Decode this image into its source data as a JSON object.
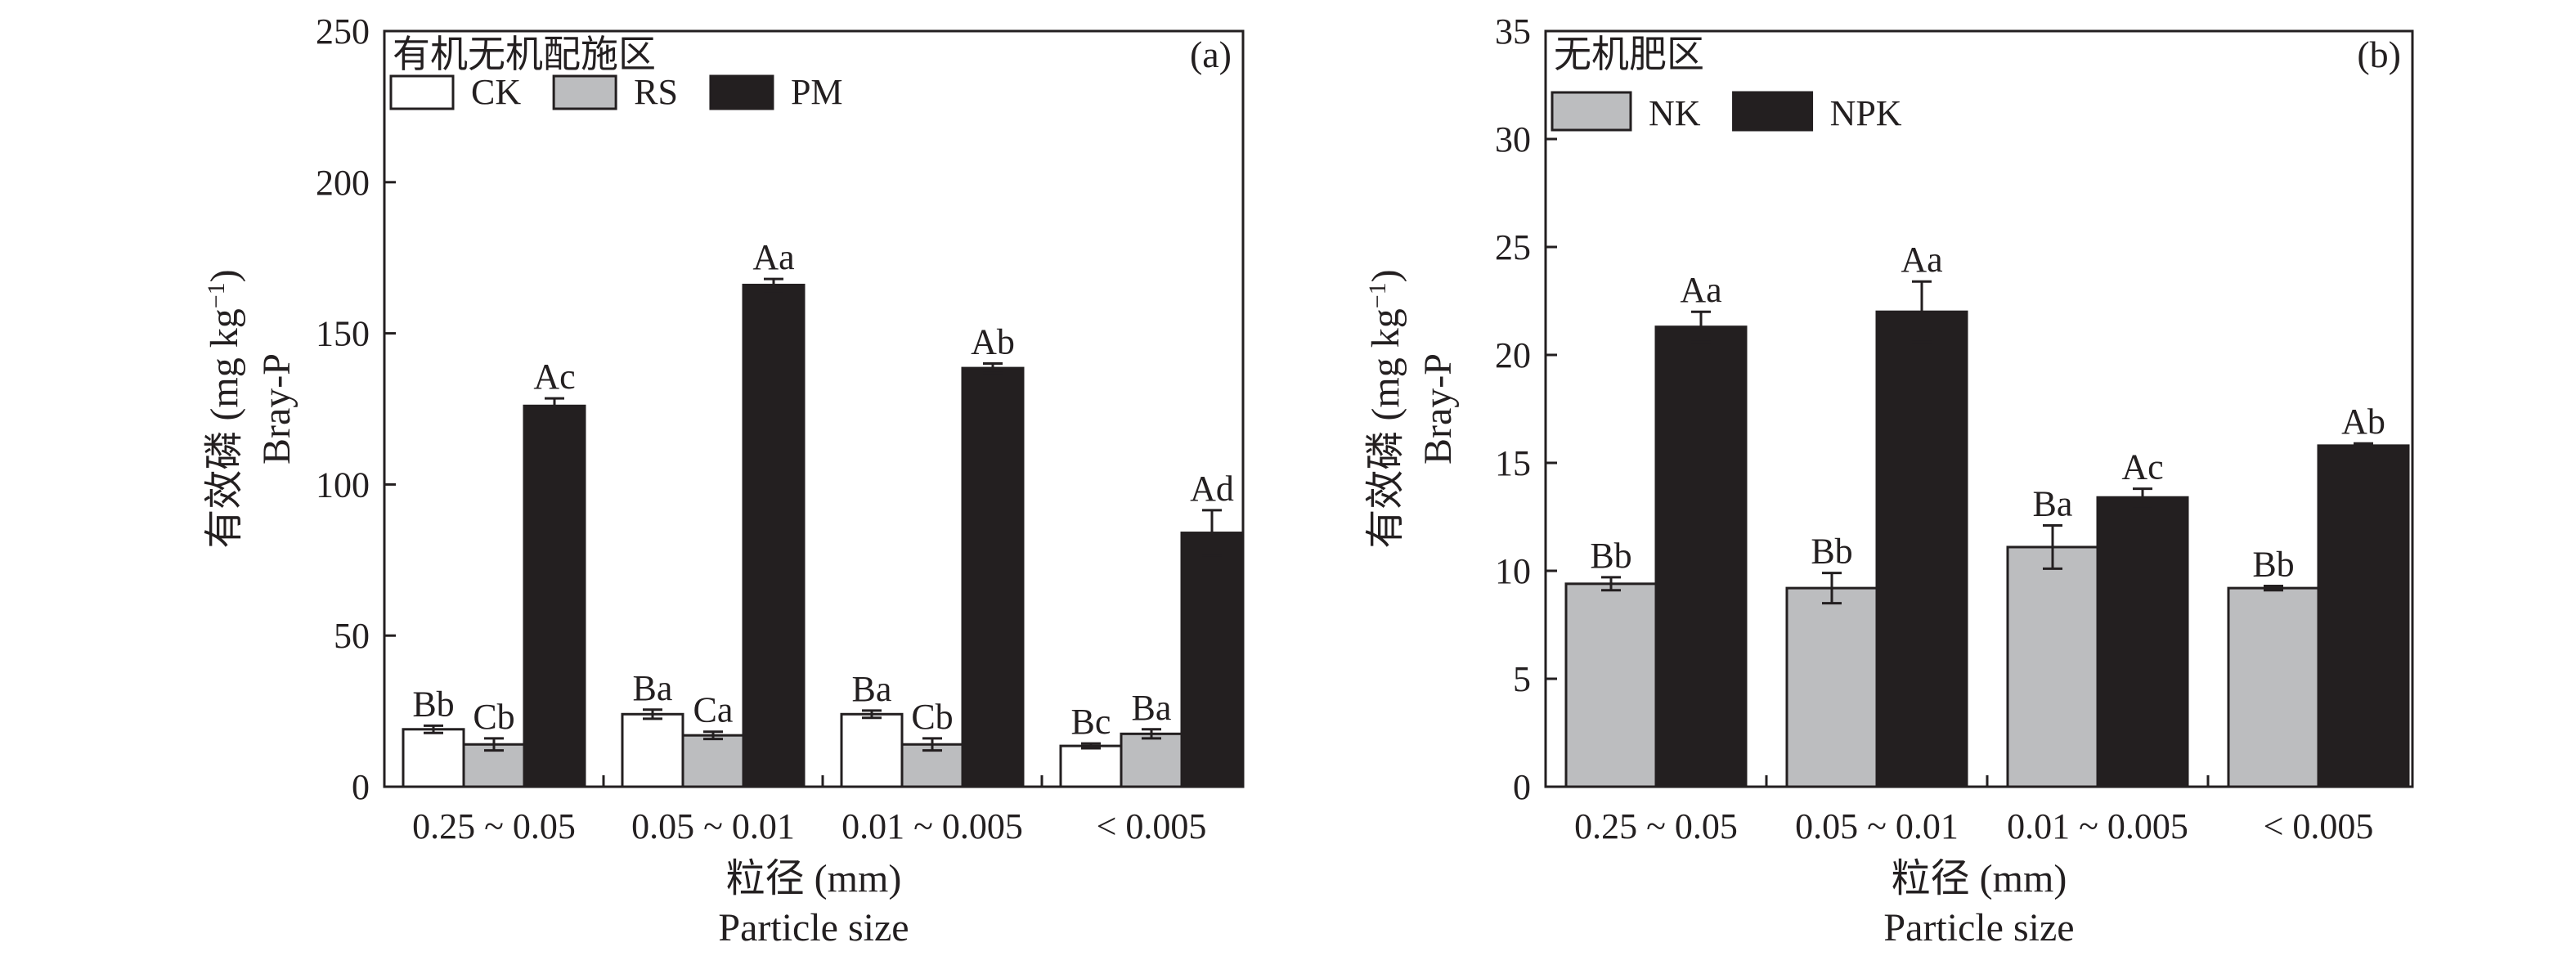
{
  "chart_data": [
    {
      "type": "bar",
      "panel_tag": "(a)",
      "title": "有机无机配施区",
      "ylabel_top": "有效磷 (mg kg",
      "ylabel_sup": "−1",
      "ylabel_close": ")",
      "ylabel_bottom": "Bray-P",
      "xlabel": "粒径 (mm)",
      "xlabel_sub": "Particle size",
      "ylim": [
        0,
        250
      ],
      "yticks": [
        0,
        50,
        100,
        150,
        200,
        250
      ],
      "grid": false,
      "legend_position": "top-left",
      "categories": [
        "0.25 ~ 0.05",
        "0.05 ~ 0.01",
        "0.01 ~ 0.005",
        "< 0.005"
      ],
      "series": [
        {
          "name": "CK",
          "color": "#ffffff",
          "values": [
            19,
            24,
            24,
            13.5
          ],
          "errors": [
            1.2,
            1.5,
            1.2,
            0.8
          ],
          "labels": [
            "Bb",
            "Ba",
            "Ba",
            "Bc"
          ]
        },
        {
          "name": "RS",
          "color": "#bcbdbf",
          "values": [
            14,
            17,
            14,
            17.5
          ],
          "errors": [
            2.0,
            1.2,
            2.0,
            1.5
          ],
          "labels": [
            "Cb",
            "Ca",
            "Cb",
            "Ba"
          ]
        },
        {
          "name": "PM",
          "color": "#231f20",
          "values": [
            126,
            166,
            138.5,
            84
          ],
          "errors": [
            2.5,
            2.0,
            1.5,
            7.5
          ],
          "labels": [
            "Ac",
            "Aa",
            "Ab",
            "Ad"
          ]
        }
      ]
    },
    {
      "type": "bar",
      "panel_tag": "(b)",
      "title": "无机肥区",
      "ylabel_top": "有效磷 (mg kg",
      "ylabel_sup": "−1",
      "ylabel_close": ")",
      "ylabel_bottom": "Bray-P",
      "xlabel": "粒径 (mm)",
      "xlabel_sub": "Particle size",
      "ylim": [
        0,
        35
      ],
      "yticks": [
        0,
        5,
        10,
        15,
        20,
        25,
        30,
        35
      ],
      "grid": false,
      "legend_position": "top-left",
      "categories": [
        "0.25 ~ 0.05",
        "0.05 ~ 0.01",
        "0.01 ~ 0.005",
        "< 0.005"
      ],
      "series": [
        {
          "name": "NK",
          "color": "#bcbdbf",
          "values": [
            9.4,
            9.2,
            11.1,
            9.2
          ],
          "errors": [
            0.3,
            0.7,
            1.0,
            0.1
          ],
          "labels": [
            "Bb",
            "Bb",
            "Ba",
            "Bb"
          ]
        },
        {
          "name": "NPK",
          "color": "#231f20",
          "values": [
            21.3,
            22.0,
            13.4,
            15.8
          ],
          "errors": [
            0.7,
            1.4,
            0.4,
            0.1
          ],
          "labels": [
            "Aa",
            "Aa",
            "Ac",
            "Ab"
          ]
        }
      ]
    }
  ]
}
